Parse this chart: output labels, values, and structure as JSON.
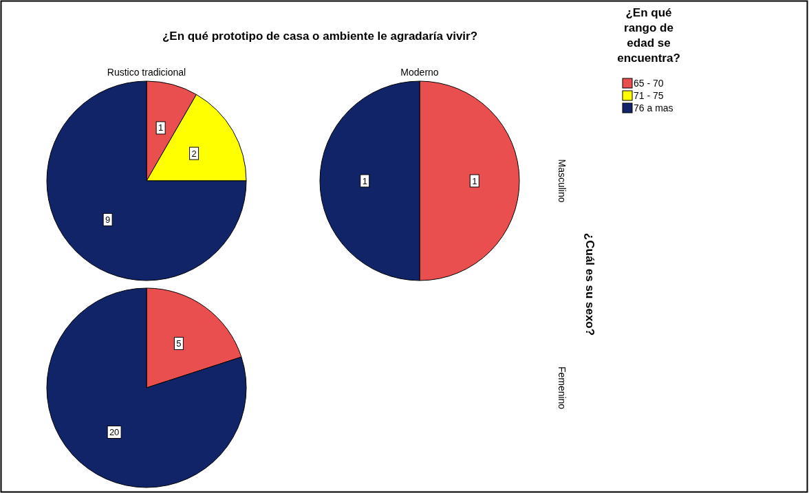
{
  "chart_data": [
    {
      "type": "pie",
      "title": "¿En qué prototipo de casa o ambiente le agradaría vivir?",
      "subtitle": "Rustico tradicional",
      "legend_title": "¿En qué rango de edad se encuentra?",
      "legend": "top right",
      "categories": [
        "65 - 70",
        "71 - 75",
        "76 a mas"
      ],
      "values": [
        1,
        2,
        9
      ],
      "colors": [
        "#e94f4f",
        "#ffff00",
        "#112468"
      ],
      "data_labels": true
    },
    {
      "type": "pie",
      "subtitle": "Moderno",
      "y2label": "Masculino",
      "values": [
        1,
        null,
        1
      ],
      "colors": [
        "#e94f4f",
        null,
        "#112468"
      ],
      "data_labels": true
    },
    {
      "type": "pie",
      "y2label": "Femenino",
      "annotations": [
        "¿Cuál es su sexo?"
      ],
      "values": [
        5,
        null,
        20
      ],
      "colors": [
        "#e94f4f",
        null,
        "#112468"
      ],
      "data_labels": true
    }
  ]
}
